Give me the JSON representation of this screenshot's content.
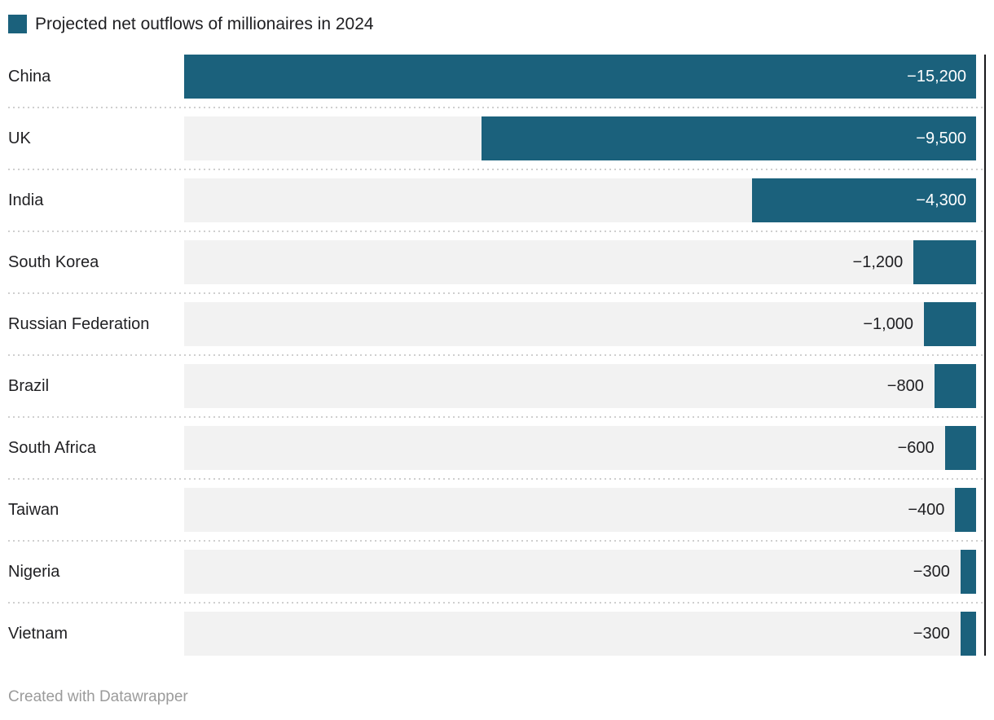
{
  "legend": {
    "label": "Projected net outflows of millionaires in 2024",
    "swatch_color": "#1b617c"
  },
  "footer": {
    "attribution": "Created with Datawrapper"
  },
  "chart_data": {
    "type": "bar",
    "orientation": "horizontal",
    "title": "Projected net outflows of millionaires in 2024",
    "categories": [
      "China",
      "UK",
      "India",
      "South Korea",
      "Russian Federation",
      "Brazil",
      "South Africa",
      "Taiwan",
      "Nigeria",
      "Vietnam"
    ],
    "values": [
      -15200,
      -9500,
      -4300,
      -1200,
      -1000,
      -800,
      -600,
      -400,
      -300,
      -300
    ],
    "value_labels": [
      "−15,200",
      "−9,500",
      "−4,300",
      "−1,200",
      "−1,000",
      "−800",
      "−600",
      "−400",
      "−300",
      "−300"
    ],
    "xlim": [
      -15200,
      0
    ],
    "bar_color": "#1b617c",
    "track_color": "#f2f2f2",
    "separator_color": "#cfcfcf",
    "zero_axis_line": true,
    "grid": false,
    "legend_position": "top-left"
  }
}
